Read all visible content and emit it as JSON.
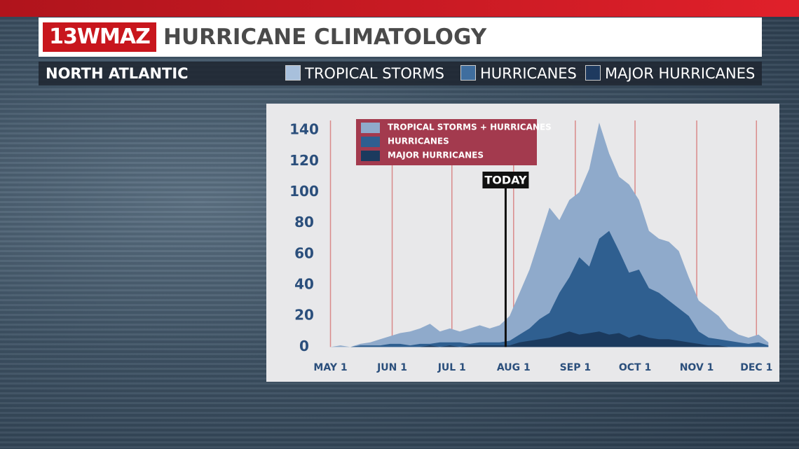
{
  "header": {
    "logo": "13WMAZ",
    "title": "HURRICANE CLIMATOLOGY",
    "region": "NORTH ATLANTIC",
    "legend": [
      "TROPICAL STORMS",
      "HURRICANES",
      "MAJOR HURRICANES"
    ]
  },
  "chart_data": {
    "type": "area",
    "x": [
      0,
      5,
      10,
      15,
      20,
      25,
      30,
      35,
      40,
      45,
      50,
      55,
      60,
      65,
      70,
      75,
      80,
      85,
      90,
      95,
      100,
      105,
      110,
      115,
      120,
      125,
      130,
      135,
      140,
      145,
      150,
      155,
      160,
      165,
      170,
      175,
      180,
      185,
      190,
      195,
      200,
      205,
      210,
      215,
      220
    ],
    "series": [
      {
        "name": "TROPICAL STORMS + HURRICANES",
        "color": "#8faacb",
        "values": [
          0,
          1,
          0,
          2,
          3,
          5,
          7,
          9,
          10,
          12,
          15,
          10,
          12,
          10,
          12,
          14,
          12,
          14,
          20,
          35,
          50,
          70,
          90,
          82,
          95,
          100,
          115,
          145,
          125,
          110,
          105,
          95,
          75,
          70,
          68,
          62,
          45,
          30,
          25,
          20,
          12,
          8,
          6,
          8,
          3
        ]
      },
      {
        "name": "HURRICANES",
        "color": "#2f5f90",
        "values": [
          0,
          0,
          0,
          1,
          1,
          1,
          2,
          2,
          1,
          2,
          2,
          3,
          3,
          3,
          2,
          3,
          3,
          3,
          4,
          8,
          12,
          18,
          22,
          35,
          45,
          58,
          52,
          70,
          75,
          62,
          48,
          50,
          38,
          35,
          30,
          25,
          20,
          10,
          6,
          5,
          4,
          3,
          2,
          3,
          1
        ]
      },
      {
        "name": "MAJOR HURRICANES",
        "color": "#1b3a5e",
        "values": [
          0,
          0,
          0,
          0,
          0,
          0,
          0,
          0,
          0,
          0,
          1,
          0,
          1,
          0,
          1,
          1,
          1,
          1,
          1,
          3,
          4,
          5,
          6,
          8,
          10,
          8,
          9,
          10,
          8,
          9,
          6,
          8,
          6,
          5,
          5,
          4,
          3,
          2,
          1,
          1,
          0,
          0,
          0,
          0,
          0
        ]
      }
    ],
    "xlim": [
      -3,
      222
    ],
    "xticks": [
      {
        "value": 0,
        "label": "MAY 1"
      },
      {
        "value": 31,
        "label": "JUN 1"
      },
      {
        "value": 61,
        "label": "JUL 1"
      },
      {
        "value": 92,
        "label": "AUG 1"
      },
      {
        "value": 123,
        "label": "SEP 1"
      },
      {
        "value": 153,
        "label": "OCT 1"
      },
      {
        "value": 184,
        "label": "NOV 1"
      },
      {
        "value": 214,
        "label": "DEC 1"
      }
    ],
    "ylim": [
      -8,
      150
    ],
    "yticks": [
      0,
      20,
      40,
      60,
      80,
      100,
      120,
      140
    ],
    "today": {
      "value": 88,
      "label": "TODAY"
    }
  }
}
